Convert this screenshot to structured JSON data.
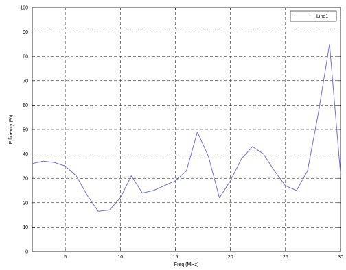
{
  "chart_data": {
    "type": "line",
    "title": "",
    "xlabel": "Freq (MHz)",
    "ylabel": "Efficiency (%)",
    "xlim": [
      2,
      30
    ],
    "ylim": [
      0,
      100
    ],
    "xticks": [
      5,
      10,
      15,
      20,
      25,
      30
    ],
    "yticks": [
      0,
      10,
      20,
      30,
      40,
      50,
      60,
      70,
      80,
      90,
      100
    ],
    "grid": true,
    "legend_position": "top-right",
    "series": [
      {
        "name": "Line1",
        "color": "#6f6fd8",
        "x": [
          2,
          3,
          4,
          5,
          6,
          7,
          8,
          9,
          10,
          11,
          12,
          13,
          14,
          15,
          16,
          17,
          18,
          19,
          20,
          21,
          22,
          23,
          24,
          25,
          26,
          27,
          28,
          29,
          30
        ],
        "y": [
          36,
          37,
          36.5,
          35,
          31,
          23,
          16.5,
          17,
          22,
          31,
          24,
          25,
          27,
          29,
          33,
          49,
          39,
          22,
          29,
          38,
          43,
          40,
          33,
          27,
          25,
          33,
          57,
          85,
          32
        ]
      }
    ]
  }
}
